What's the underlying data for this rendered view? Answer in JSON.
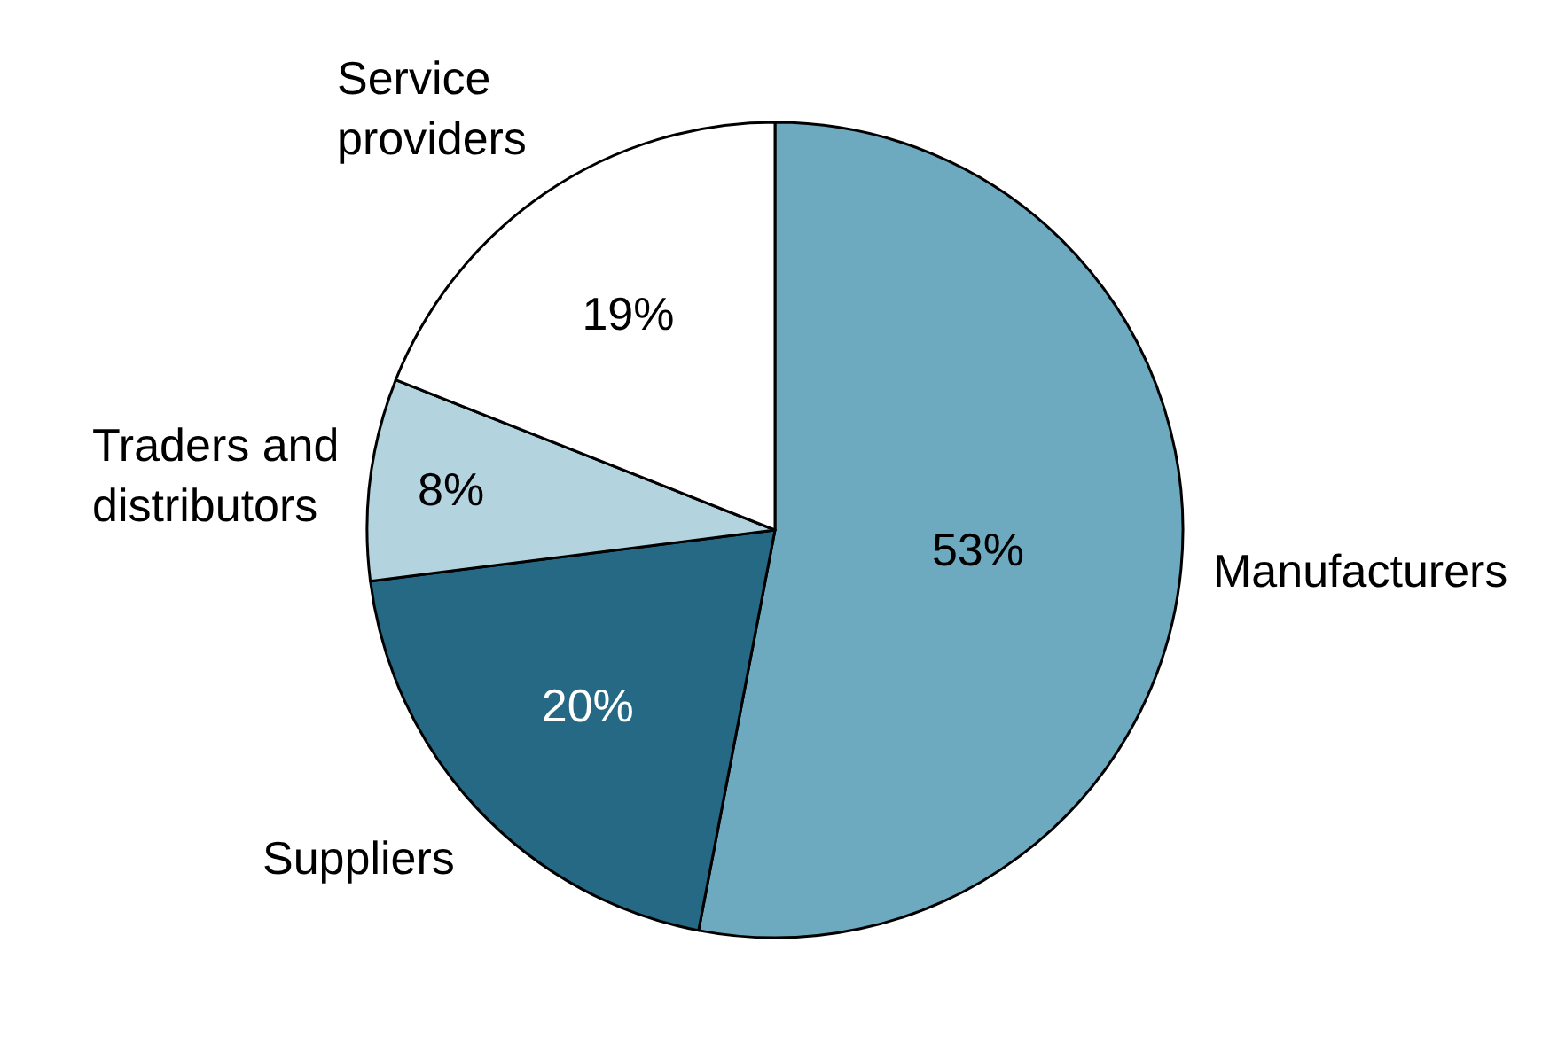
{
  "chart_data": {
    "type": "pie",
    "categories": [
      "Manufacturers",
      "Suppliers",
      "Traders and distributors",
      "Service providers"
    ],
    "values": [
      53,
      20,
      8,
      19
    ],
    "value_labels": [
      "53%",
      "20%",
      "8%",
      "19%"
    ],
    "colors": [
      "#6eaabf",
      "#266985",
      "#b3d4df",
      "#ffffff"
    ],
    "legend": false
  }
}
